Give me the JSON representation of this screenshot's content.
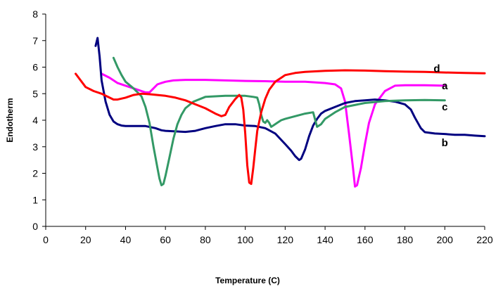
{
  "chart_data": {
    "type": "line",
    "title": "",
    "xlabel": "Temperature (C)",
    "ylabel": "Endotherm",
    "xlim": [
      0,
      220
    ],
    "ylim": [
      0,
      8
    ],
    "x_ticks": [
      0,
      20,
      40,
      60,
      80,
      100,
      120,
      140,
      160,
      180,
      200,
      220
    ],
    "y_ticks": [
      0,
      1,
      2,
      3,
      4,
      5,
      6,
      7,
      8
    ],
    "grid": false,
    "legend": "none",
    "series": [
      {
        "name": "a",
        "color": "#ff00ff",
        "x": [
          28,
          32,
          36,
          40,
          44,
          48,
          50,
          52,
          54,
          56,
          58,
          60,
          64,
          70,
          80,
          90,
          100,
          110,
          120,
          130,
          140,
          145,
          148,
          150,
          152,
          154,
          155,
          156,
          158,
          160,
          162,
          165,
          170,
          175,
          180,
          190,
          200
        ],
        "y": [
          5.75,
          5.6,
          5.4,
          5.3,
          5.2,
          5.1,
          5.05,
          5.05,
          5.2,
          5.35,
          5.4,
          5.45,
          5.5,
          5.52,
          5.52,
          5.5,
          5.48,
          5.47,
          5.45,
          5.45,
          5.4,
          5.35,
          5.2,
          4.7,
          3.5,
          2.2,
          1.5,
          1.55,
          2.2,
          3.1,
          3.9,
          4.6,
          5.1,
          5.3,
          5.32,
          5.32,
          5.3
        ]
      },
      {
        "name": "b",
        "color": "#000080",
        "x": [
          25,
          26,
          27,
          28,
          30,
          32,
          34,
          36,
          38,
          40,
          45,
          50,
          55,
          58,
          60,
          65,
          70,
          75,
          80,
          85,
          90,
          95,
          100,
          105,
          110,
          115,
          120,
          123,
          125,
          127,
          128,
          130,
          132,
          134,
          136,
          138,
          140,
          145,
          150,
          155,
          160,
          165,
          170,
          175,
          180,
          183,
          185,
          188,
          190,
          195,
          200,
          205,
          210,
          215,
          220
        ],
        "y": [
          6.8,
          7.1,
          6.4,
          5.5,
          4.7,
          4.2,
          3.95,
          3.85,
          3.8,
          3.78,
          3.78,
          3.78,
          3.7,
          3.62,
          3.6,
          3.58,
          3.56,
          3.6,
          3.7,
          3.78,
          3.85,
          3.85,
          3.8,
          3.78,
          3.7,
          3.5,
          3.1,
          2.85,
          2.65,
          2.5,
          2.55,
          2.9,
          3.4,
          3.8,
          4.05,
          4.25,
          4.35,
          4.5,
          4.65,
          4.72,
          4.75,
          4.78,
          4.75,
          4.7,
          4.6,
          4.4,
          4.1,
          3.7,
          3.55,
          3.5,
          3.48,
          3.45,
          3.45,
          3.42,
          3.4
        ]
      },
      {
        "name": "c",
        "color": "#339966",
        "x": [
          34,
          36,
          38,
          40,
          44,
          48,
          50,
          52,
          54,
          56,
          57,
          58,
          59,
          60,
          62,
          64,
          66,
          68,
          70,
          74,
          80,
          90,
          100,
          104,
          106,
          107,
          108,
          109,
          110,
          111,
          112,
          113,
          114,
          116,
          118,
          120,
          125,
          130,
          134,
          136,
          138,
          140,
          145,
          150,
          160,
          170,
          180,
          190,
          200
        ],
        "y": [
          6.35,
          6.0,
          5.7,
          5.45,
          5.2,
          4.9,
          4.5,
          3.9,
          3.0,
          2.2,
          1.8,
          1.55,
          1.6,
          1.9,
          2.6,
          3.3,
          3.85,
          4.2,
          4.45,
          4.7,
          4.88,
          4.92,
          4.92,
          4.88,
          4.85,
          4.6,
          4.2,
          3.95,
          3.9,
          4.0,
          3.9,
          3.75,
          3.8,
          3.9,
          4.0,
          4.05,
          4.15,
          4.25,
          4.3,
          3.75,
          3.85,
          4.05,
          4.3,
          4.5,
          4.65,
          4.72,
          4.75,
          4.76,
          4.75
        ]
      },
      {
        "name": "d",
        "color": "#ff0000",
        "x": [
          15,
          18,
          20,
          24,
          28,
          32,
          34,
          36,
          40,
          44,
          48,
          52,
          56,
          60,
          65,
          70,
          75,
          80,
          85,
          88,
          90,
          92,
          95,
          97,
          98,
          99,
          100,
          101,
          102,
          103,
          104,
          105,
          106,
          108,
          110,
          112,
          115,
          118,
          120,
          125,
          130,
          140,
          150,
          160,
          170,
          180,
          190,
          200,
          210,
          220
        ],
        "y": [
          5.75,
          5.45,
          5.25,
          5.1,
          5.0,
          4.85,
          4.78,
          4.78,
          4.85,
          4.95,
          5.0,
          4.98,
          4.95,
          4.92,
          4.85,
          4.75,
          4.6,
          4.45,
          4.25,
          4.15,
          4.2,
          4.5,
          4.8,
          4.95,
          4.85,
          4.4,
          3.5,
          2.3,
          1.65,
          1.6,
          2.2,
          2.9,
          3.6,
          4.3,
          4.8,
          5.15,
          5.45,
          5.6,
          5.7,
          5.78,
          5.82,
          5.86,
          5.88,
          5.87,
          5.85,
          5.83,
          5.82,
          5.8,
          5.78,
          5.77
        ]
      }
    ],
    "series_labels": [
      {
        "text": "a",
        "x": 200,
        "y": 5.3
      },
      {
        "text": "b",
        "x": 200,
        "y": 3.15
      },
      {
        "text": "c",
        "x": 200,
        "y": 4.5
      },
      {
        "text": "d",
        "x": 196,
        "y": 5.95
      }
    ]
  }
}
